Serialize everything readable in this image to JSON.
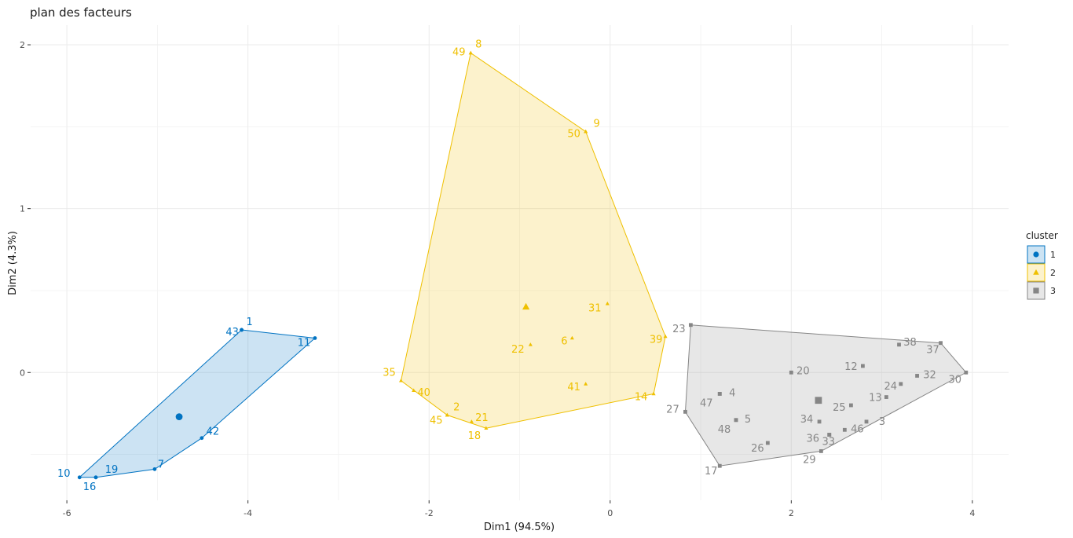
{
  "chart_data": {
    "type": "scatter",
    "title": "plan des facteurs",
    "xlabel": "Dim1 (94.5%)",
    "ylabel": "Dim2 (4.3%)",
    "xlim": [
      -6.4,
      4.4
    ],
    "ylim": [
      -0.78,
      2.12
    ],
    "x_ticks": [
      -6,
      -4,
      -2,
      0,
      2,
      4
    ],
    "y_ticks": [
      0,
      1,
      2
    ],
    "x_tick_labels": [
      "-6",
      "-4",
      "-2",
      "0",
      "2",
      "4"
    ],
    "y_tick_labels": [
      "0",
      "1",
      "2"
    ],
    "grid": true,
    "legend_title": "cluster",
    "legend_position": "right",
    "series": [
      {
        "name": "1",
        "color": "#0073C2",
        "fill": "#0073C2",
        "shape": "circle",
        "centroid": [
          -4.76,
          -0.27
        ],
        "hull": [
          [
            -4.07,
            0.26
          ],
          [
            -3.26,
            0.21
          ],
          [
            -4.51,
            -0.4
          ],
          [
            -5.03,
            -0.59
          ],
          [
            -5.68,
            -0.64
          ],
          [
            -5.86,
            -0.64
          ]
        ],
        "points": [
          {
            "label": "1",
            "x": -4.07,
            "y": 0.26
          },
          {
            "label": "43",
            "x": -4.07,
            "y": 0.26
          },
          {
            "label": "11",
            "x": -3.26,
            "y": 0.21
          },
          {
            "label": "42",
            "x": -4.51,
            "y": -0.4
          },
          {
            "label": "7",
            "x": -5.03,
            "y": -0.59
          },
          {
            "label": "19",
            "x": -5.68,
            "y": -0.64
          },
          {
            "label": "16",
            "x": -5.68,
            "y": -0.64
          },
          {
            "label": "10",
            "x": -5.86,
            "y": -0.64
          }
        ]
      },
      {
        "name": "2",
        "color": "#EFC000",
        "fill": "#EFC000",
        "shape": "triangle",
        "centroid": [
          -0.93,
          0.4
        ],
        "hull": [
          [
            -1.54,
            1.95
          ],
          [
            -0.27,
            1.47
          ],
          [
            0.61,
            0.22
          ],
          [
            0.48,
            -0.13
          ],
          [
            -1.37,
            -0.34
          ],
          [
            -1.8,
            -0.26
          ],
          [
            -2.31,
            -0.05
          ]
        ],
        "points": [
          {
            "label": "8",
            "x": -1.54,
            "y": 1.95
          },
          {
            "label": "49",
            "x": -1.54,
            "y": 1.95
          },
          {
            "label": "9",
            "x": -0.27,
            "y": 1.47
          },
          {
            "label": "50",
            "x": -0.27,
            "y": 1.47
          },
          {
            "label": "31",
            "x": -0.03,
            "y": 0.42
          },
          {
            "label": "6",
            "x": -0.42,
            "y": 0.21
          },
          {
            "label": "22",
            "x": -0.88,
            "y": 0.17
          },
          {
            "label": "39",
            "x": 0.61,
            "y": 0.22
          },
          {
            "label": "41",
            "x": -0.27,
            "y": -0.07
          },
          {
            "label": "14",
            "x": 0.48,
            "y": -0.13
          },
          {
            "label": "35",
            "x": -2.31,
            "y": -0.05
          },
          {
            "label": "40",
            "x": -2.17,
            "y": -0.11
          },
          {
            "label": "2",
            "x": -1.8,
            "y": -0.26
          },
          {
            "label": "45",
            "x": -1.8,
            "y": -0.26
          },
          {
            "label": "21",
            "x": -1.53,
            "y": -0.3
          },
          {
            "label": "18",
            "x": -1.37,
            "y": -0.34
          }
        ]
      },
      {
        "name": "3",
        "color": "#868686",
        "fill": "#868686",
        "shape": "square",
        "centroid": [
          2.3,
          -0.17
        ],
        "hull": [
          [
            0.89,
            0.29
          ],
          [
            3.65,
            0.18
          ],
          [
            3.93,
            0.0
          ],
          [
            2.33,
            -0.48
          ],
          [
            1.21,
            -0.57
          ],
          [
            0.83,
            -0.24
          ]
        ],
        "points": [
          {
            "label": "23",
            "x": 0.89,
            "y": 0.29
          },
          {
            "label": "38",
            "x": 3.19,
            "y": 0.17
          },
          {
            "label": "37",
            "x": 3.65,
            "y": 0.18
          },
          {
            "label": "20",
            "x": 2.0,
            "y": 0.0
          },
          {
            "label": "12",
            "x": 2.79,
            "y": 0.04
          },
          {
            "label": "32",
            "x": 3.39,
            "y": -0.02
          },
          {
            "label": "30",
            "x": 3.93,
            "y": 0.0
          },
          {
            "label": "4",
            "x": 1.21,
            "y": -0.13
          },
          {
            "label": "47",
            "x": 1.21,
            "y": -0.13
          },
          {
            "label": "24",
            "x": 3.21,
            "y": -0.07
          },
          {
            "label": "13",
            "x": 3.05,
            "y": -0.15
          },
          {
            "label": "27",
            "x": 0.83,
            "y": -0.24
          },
          {
            "label": "25",
            "x": 2.66,
            "y": -0.2
          },
          {
            "label": "5",
            "x": 1.39,
            "y": -0.29
          },
          {
            "label": "48",
            "x": 1.39,
            "y": -0.29
          },
          {
            "label": "34",
            "x": 2.31,
            "y": -0.3
          },
          {
            "label": "3",
            "x": 2.83,
            "y": -0.3
          },
          {
            "label": "46",
            "x": 2.59,
            "y": -0.35
          },
          {
            "label": "36",
            "x": 2.42,
            "y": -0.38
          },
          {
            "label": "33",
            "x": 2.42,
            "y": -0.38
          },
          {
            "label": "26",
            "x": 1.74,
            "y": -0.43
          },
          {
            "label": "29",
            "x": 2.33,
            "y": -0.48
          },
          {
            "label": "17",
            "x": 1.21,
            "y": -0.57
          }
        ]
      }
    ]
  }
}
